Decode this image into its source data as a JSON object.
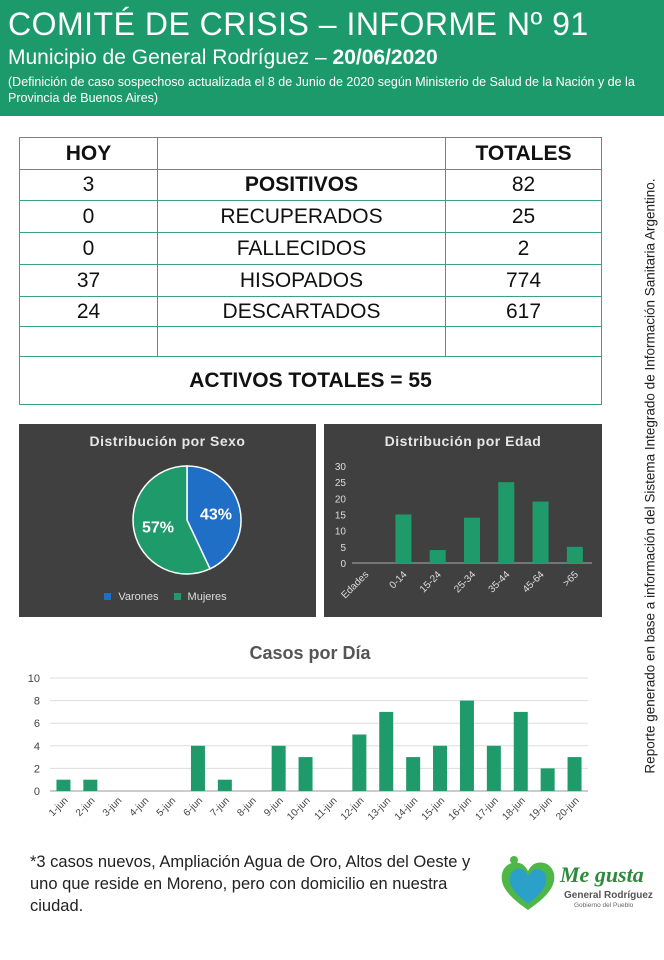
{
  "header": {
    "title": "COMITÉ DE CRISIS – INFORME Nº 91",
    "subtitle_prefix": "Municipio de General Rodríguez – ",
    "subtitle_date": "20/06/2020",
    "note": "(Definición de caso sospechoso actualizada el 8 de Junio de 2020 según Ministerio de Salud de la Nación y de la Provincia de Buenos Aires)"
  },
  "side_note": "Reporte generado en base a información del Sistema Integrado de Información Sanitaria Argentino.",
  "table": {
    "col_hoy": "HOY",
    "col_totales": "TOTALES",
    "rows": [
      {
        "hoy": "3",
        "label": "POSITIVOS",
        "total": "82"
      },
      {
        "hoy": "0",
        "label": "RECUPERADOS",
        "total": "25"
      },
      {
        "hoy": "0",
        "label": "FALLECIDOS",
        "total": "2"
      },
      {
        "hoy": "37",
        "label": "HISOPADOS",
        "total": "774"
      },
      {
        "hoy": "24",
        "label": "DESCARTADOS",
        "total": "617"
      }
    ],
    "activos": "ACTIVOS TOTALES = 55"
  },
  "colors": {
    "header_green": "#1d9a6c",
    "bar_green": "#1f9a6a",
    "pie_blue": "#1f6fc6",
    "pie_green": "#1f9a6a",
    "orange": "#e08b1e"
  },
  "chart_data": [
    {
      "type": "pie",
      "title": "Distribución por Sexo",
      "labels": [
        "Varones",
        "Mujeres"
      ],
      "values": [
        43,
        57
      ],
      "data_labels": [
        "43%",
        "57%"
      ],
      "legend": "bottom"
    },
    {
      "type": "bar",
      "title": "Distribución por Edad",
      "xlabel": "Edades",
      "categories": [
        "0-14",
        "15-24",
        "25-34",
        "35-44",
        "45-64",
        ">65"
      ],
      "values": [
        15,
        4,
        14,
        25,
        19,
        5
      ],
      "ylim": [
        0,
        30
      ],
      "yticks": [
        0,
        5,
        10,
        15,
        20,
        25,
        30
      ]
    },
    {
      "type": "bar",
      "title": "Casos por Día",
      "categories": [
        "1-jun",
        "2-jun",
        "3-jun",
        "4-jun",
        "5-jun",
        "6-jun",
        "7-jun",
        "8-jun",
        "9-jun",
        "10-jun",
        "11-jun",
        "12-jun",
        "13-jun",
        "14-jun",
        "15-jun",
        "16-jun",
        "17-jun",
        "18-jun",
        "19-jun",
        "20-jun"
      ],
      "values": [
        1,
        1,
        0,
        0,
        0,
        4,
        1,
        0,
        4,
        3,
        0,
        5,
        7,
        3,
        4,
        8,
        4,
        7,
        2,
        3
      ],
      "ylim": [
        0,
        10
      ],
      "yticks": [
        0,
        2,
        4,
        6,
        8,
        10
      ],
      "grid": true
    }
  ],
  "footer": {
    "note": "*3 casos nuevos, Ampliación Agua de Oro, Altos del Oeste y uno que reside en Moreno, pero con domicilio en nuestra ciudad."
  },
  "logo": {
    "line1": "Me gusta",
    "line2": "General Rodríguez",
    "line3": "Gobierno del Pueblo"
  }
}
